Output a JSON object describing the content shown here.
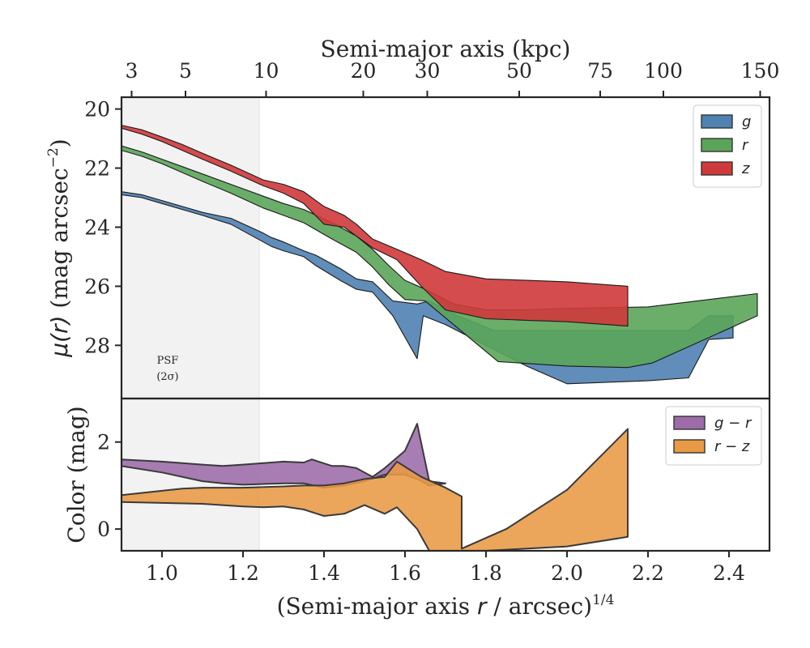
{
  "top_axis": {
    "label": "Semi-major axis (kpc)",
    "ticks": [
      {
        "label": "3",
        "at_x": 0.925
      },
      {
        "label": "5",
        "at_x": 1.058
      },
      {
        "label": "10",
        "at_x": 1.257
      },
      {
        "label": "20",
        "at_x": 1.497
      },
      {
        "label": "30",
        "at_x": 1.655
      },
      {
        "label": "50",
        "at_x": 1.882
      },
      {
        "label": "75",
        "at_x": 2.082
      },
      {
        "label": "100",
        "at_x": 2.238
      },
      {
        "label": "150",
        "at_x": 2.477
      }
    ]
  },
  "psf_label": {
    "line1": "PSF",
    "line2": "(2σ)"
  },
  "psf_region": {
    "x_max": 1.24
  },
  "chart_data": [
    {
      "type": "area",
      "panel": "surface-brightness",
      "xlim": [
        0.9,
        2.5
      ],
      "ylim": [
        29.8,
        19.6
      ],
      "y_inverted": true,
      "ylabel": "μ(r) (mag arcsec⁻²)",
      "yticks": [
        20,
        22,
        24,
        26,
        28
      ],
      "legend": {
        "placement": "top-right"
      },
      "series": [
        {
          "name": "g",
          "color": "#4f81b1",
          "upper": [
            [
              0.9,
              22.8
            ],
            [
              0.95,
              22.9
            ],
            [
              1.0,
              23.1
            ],
            [
              1.05,
              23.3
            ],
            [
              1.1,
              23.5
            ],
            [
              1.17,
              23.7
            ],
            [
              1.25,
              24.2
            ],
            [
              1.27,
              24.35
            ],
            [
              1.3,
              24.5
            ],
            [
              1.35,
              24.8
            ],
            [
              1.38,
              24.95
            ],
            [
              1.44,
              25.4
            ],
            [
              1.48,
              25.75
            ],
            [
              1.52,
              25.85
            ],
            [
              1.57,
              26.5
            ],
            [
              1.63,
              26.6
            ],
            [
              1.66,
              26.5
            ],
            [
              1.73,
              27.0
            ],
            [
              1.82,
              27.5
            ],
            [
              1.9,
              27.5
            ],
            [
              1.96,
              27.5
            ],
            [
              2.0,
              27.5
            ],
            [
              2.1,
              27.5
            ],
            [
              2.2,
              27.5
            ],
            [
              2.3,
              27.5
            ],
            [
              2.35,
              27.0
            ],
            [
              2.41,
              27.0
            ]
          ],
          "lower": [
            [
              0.9,
              22.9
            ],
            [
              0.95,
              23.0
            ],
            [
              1.0,
              23.2
            ],
            [
              1.05,
              23.4
            ],
            [
              1.1,
              23.6
            ],
            [
              1.17,
              23.9
            ],
            [
              1.25,
              24.5
            ],
            [
              1.27,
              24.65
            ],
            [
              1.3,
              24.8
            ],
            [
              1.35,
              25.0
            ],
            [
              1.38,
              25.3
            ],
            [
              1.44,
              25.8
            ],
            [
              1.48,
              26.1
            ],
            [
              1.52,
              26.2
            ],
            [
              1.57,
              27.0
            ],
            [
              1.63,
              28.45
            ],
            [
              1.645,
              27.0
            ],
            [
              1.7,
              27.3
            ],
            [
              1.8,
              28.0
            ],
            [
              1.9,
              28.7
            ],
            [
              2.0,
              29.3
            ],
            [
              2.1,
              29.25
            ],
            [
              2.2,
              29.2
            ],
            [
              2.3,
              29.1
            ],
            [
              2.35,
              27.8
            ],
            [
              2.41,
              27.75
            ]
          ]
        },
        {
          "name": "r",
          "color": "#5aa55a",
          "upper": [
            [
              0.9,
              21.25
            ],
            [
              0.95,
              21.45
            ],
            [
              1.0,
              21.7
            ],
            [
              1.05,
              21.95
            ],
            [
              1.1,
              22.2
            ],
            [
              1.17,
              22.55
            ],
            [
              1.25,
              22.95
            ],
            [
              1.3,
              23.2
            ],
            [
              1.35,
              23.4
            ],
            [
              1.42,
              23.85
            ],
            [
              1.48,
              24.3
            ],
            [
              1.52,
              24.75
            ],
            [
              1.56,
              25.3
            ],
            [
              1.6,
              25.8
            ],
            [
              1.65,
              26.1
            ],
            [
              1.72,
              26.6
            ],
            [
              1.8,
              26.8
            ],
            [
              1.9,
              26.8
            ],
            [
              2.0,
              26.75
            ],
            [
              2.2,
              26.7
            ],
            [
              2.47,
              26.25
            ]
          ],
          "lower": [
            [
              0.9,
              21.4
            ],
            [
              0.95,
              21.6
            ],
            [
              1.0,
              21.85
            ],
            [
              1.05,
              22.15
            ],
            [
              1.1,
              22.45
            ],
            [
              1.17,
              22.85
            ],
            [
              1.25,
              23.35
            ],
            [
              1.3,
              23.6
            ],
            [
              1.35,
              23.85
            ],
            [
              1.42,
              24.4
            ],
            [
              1.48,
              24.85
            ],
            [
              1.52,
              25.35
            ],
            [
              1.56,
              25.95
            ],
            [
              1.6,
              26.45
            ],
            [
              1.65,
              26.5
            ],
            [
              1.72,
              27.3
            ],
            [
              1.83,
              28.55
            ],
            [
              2.0,
              28.7
            ],
            [
              2.15,
              28.75
            ],
            [
              2.21,
              28.6
            ],
            [
              2.47,
              27.0
            ]
          ]
        },
        {
          "name": "z",
          "color": "#d0393b",
          "upper": [
            [
              0.9,
              20.55
            ],
            [
              0.95,
              20.7
            ],
            [
              1.0,
              20.95
            ],
            [
              1.05,
              21.2
            ],
            [
              1.1,
              21.5
            ],
            [
              1.17,
              21.9
            ],
            [
              1.25,
              22.4
            ],
            [
              1.3,
              22.55
            ],
            [
              1.35,
              22.8
            ],
            [
              1.4,
              23.3
            ],
            [
              1.45,
              23.6
            ],
            [
              1.48,
              23.9
            ],
            [
              1.52,
              24.4
            ],
            [
              1.58,
              24.75
            ],
            [
              1.64,
              25.1
            ],
            [
              1.7,
              25.5
            ],
            [
              1.8,
              25.75
            ],
            [
              1.9,
              25.8
            ],
            [
              2.0,
              25.85
            ],
            [
              2.15,
              26.0
            ]
          ],
          "lower": [
            [
              0.9,
              20.65
            ],
            [
              0.95,
              20.85
            ],
            [
              1.0,
              21.1
            ],
            [
              1.05,
              21.4
            ],
            [
              1.1,
              21.7
            ],
            [
              1.17,
              22.1
            ],
            [
              1.25,
              22.6
            ],
            [
              1.3,
              22.85
            ],
            [
              1.35,
              23.2
            ],
            [
              1.4,
              23.9
            ],
            [
              1.45,
              24.0
            ],
            [
              1.48,
              24.3
            ],
            [
              1.52,
              24.7
            ],
            [
              1.58,
              25.1
            ],
            [
              1.64,
              26.0
            ],
            [
              1.7,
              26.8
            ],
            [
              1.8,
              27.1
            ],
            [
              1.9,
              27.15
            ],
            [
              2.0,
              27.2
            ],
            [
              2.15,
              27.35
            ]
          ]
        }
      ]
    },
    {
      "type": "area",
      "panel": "color",
      "xlim": [
        0.9,
        2.5
      ],
      "ylim": [
        -0.5,
        3.0
      ],
      "ylabel": "Color (mag)",
      "yticks": [
        0,
        2
      ],
      "xlabel": "(Semi-major axis r / arcsec)¹ᐟ⁴",
      "xticks": [
        1.0,
        1.2,
        1.4,
        1.6,
        1.8,
        2.0,
        2.2,
        2.4
      ],
      "legend": {
        "placement": "top-right"
      },
      "series": [
        {
          "name": "g − r",
          "color": "#9c6ba8",
          "upper": [
            [
              0.9,
              1.6
            ],
            [
              1.0,
              1.55
            ],
            [
              1.1,
              1.48
            ],
            [
              1.15,
              1.45
            ],
            [
              1.2,
              1.48
            ],
            [
              1.3,
              1.55
            ],
            [
              1.35,
              1.53
            ],
            [
              1.37,
              1.6
            ],
            [
              1.42,
              1.45
            ],
            [
              1.45,
              1.45
            ],
            [
              1.48,
              1.4
            ],
            [
              1.52,
              1.2
            ],
            [
              1.55,
              1.4
            ],
            [
              1.6,
              1.8
            ],
            [
              1.63,
              2.42
            ],
            [
              1.66,
              1.1
            ],
            [
              1.7,
              1.05
            ]
          ],
          "lower": [
            [
              0.9,
              1.45
            ],
            [
              1.0,
              1.3
            ],
            [
              1.1,
              1.1
            ],
            [
              1.15,
              1.05
            ],
            [
              1.2,
              1.02
            ],
            [
              1.3,
              1.05
            ],
            [
              1.35,
              1.05
            ],
            [
              1.4,
              0.95
            ],
            [
              1.45,
              1.0
            ],
            [
              1.5,
              1.1
            ],
            [
              1.55,
              1.25
            ],
            [
              1.6,
              1.25
            ],
            [
              1.63,
              1.15
            ],
            [
              1.66,
              1.0
            ],
            [
              1.7,
              1.05
            ]
          ]
        },
        {
          "name": "r − z",
          "color": "#e89a45",
          "upper": [
            [
              0.9,
              0.78
            ],
            [
              1.0,
              0.88
            ],
            [
              1.05,
              0.93
            ],
            [
              1.1,
              0.95
            ],
            [
              1.2,
              0.95
            ],
            [
              1.3,
              0.98
            ],
            [
              1.35,
              1.0
            ],
            [
              1.4,
              1.0
            ],
            [
              1.45,
              1.05
            ],
            [
              1.5,
              1.15
            ],
            [
              1.55,
              1.2
            ],
            [
              1.58,
              1.55
            ],
            [
              1.64,
              1.2
            ],
            [
              1.7,
              0.95
            ],
            [
              1.74,
              0.75
            ],
            [
              1.74,
              -0.45
            ],
            [
              1.85,
              0.0
            ],
            [
              2.0,
              0.9
            ],
            [
              2.15,
              2.3
            ]
          ],
          "lower": [
            [
              0.9,
              0.62
            ],
            [
              1.0,
              0.6
            ],
            [
              1.1,
              0.58
            ],
            [
              1.2,
              0.52
            ],
            [
              1.25,
              0.5
            ],
            [
              1.3,
              0.52
            ],
            [
              1.35,
              0.45
            ],
            [
              1.4,
              0.3
            ],
            [
              1.45,
              0.35
            ],
            [
              1.5,
              0.55
            ],
            [
              1.55,
              0.35
            ],
            [
              1.58,
              0.5
            ],
            [
              1.63,
              0.0
            ],
            [
              1.66,
              -0.5
            ],
            [
              1.8,
              -0.5
            ],
            [
              2.0,
              -0.4
            ],
            [
              2.15,
              -0.18
            ]
          ]
        }
      ]
    }
  ]
}
